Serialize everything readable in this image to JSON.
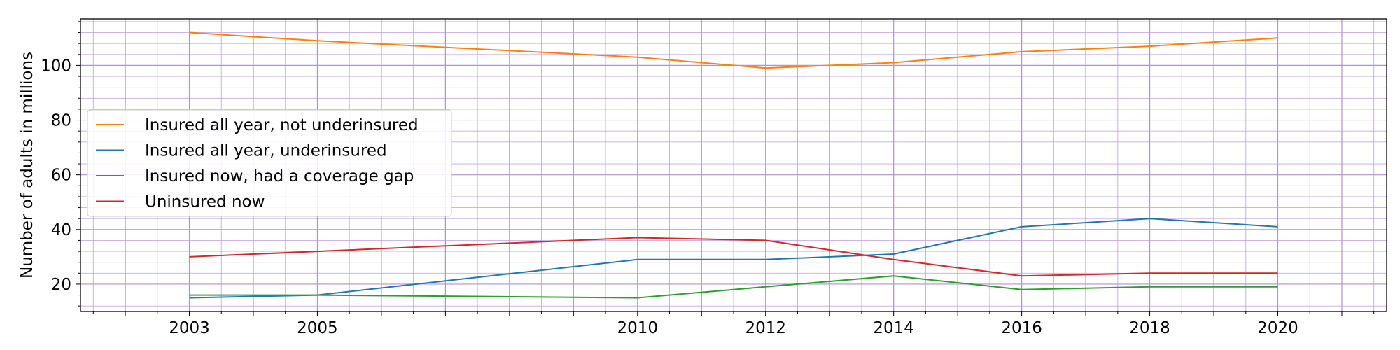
{
  "chart_data": {
    "type": "line",
    "title": "",
    "xlabel": "",
    "ylabel": "Number of adults in millions",
    "x": [
      2003,
      2005,
      2010,
      2012,
      2014,
      2016,
      2018,
      2020
    ],
    "x_tick_labels": [
      "2003",
      "2005",
      "2010",
      "2012",
      "2014",
      "2016",
      "2018",
      "2020"
    ],
    "y_tick_values": [
      20,
      40,
      60,
      80,
      100
    ],
    "y_tick_labels": [
      "20",
      "40",
      "60",
      "80",
      "100"
    ],
    "xlim": [
      2001.3,
      2021.7
    ],
    "ylim": [
      10,
      117
    ],
    "grid": true,
    "grid_color": "#b38fdc",
    "legend_position": "center-left",
    "series": [
      {
        "name": "Insured all year, not underinsured",
        "color": "#ff7f0e",
        "values": [
          112,
          109,
          103,
          99,
          101,
          105,
          107,
          110
        ]
      },
      {
        "name": "Insured all year, underinsured",
        "color": "#1f77b4",
        "values": [
          15,
          16,
          29,
          29,
          31,
          41,
          44,
          41
        ]
      },
      {
        "name": "Insured now, had a coverage gap",
        "color": "#2ca02c",
        "values": [
          16,
          16,
          15,
          19,
          23,
          18,
          19,
          19
        ]
      },
      {
        "name": "Uninsured now",
        "color": "#d62728",
        "values": [
          30,
          32,
          37,
          36,
          29,
          23,
          24,
          24
        ]
      }
    ]
  }
}
